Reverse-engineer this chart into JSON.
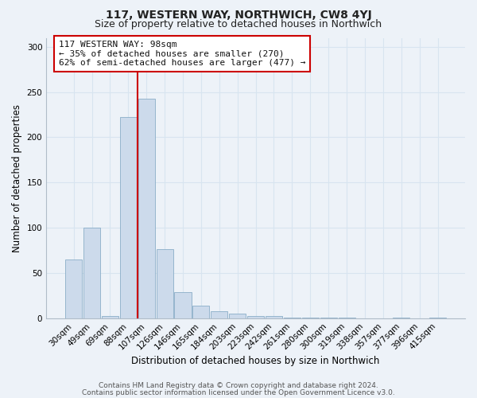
{
  "title": "117, WESTERN WAY, NORTHWICH, CW8 4YJ",
  "subtitle": "Size of property relative to detached houses in Northwich",
  "xlabel": "Distribution of detached houses by size in Northwich",
  "ylabel": "Number of detached properties",
  "bar_labels": [
    "30sqm",
    "49sqm",
    "69sqm",
    "88sqm",
    "107sqm",
    "126sqm",
    "146sqm",
    "165sqm",
    "184sqm",
    "203sqm",
    "223sqm",
    "242sqm",
    "261sqm",
    "280sqm",
    "300sqm",
    "319sqm",
    "338sqm",
    "357sqm",
    "377sqm",
    "396sqm",
    "415sqm"
  ],
  "bar_values": [
    65,
    100,
    2,
    222,
    243,
    76,
    29,
    14,
    8,
    5,
    2,
    2,
    1,
    1,
    1,
    1,
    0,
    0,
    1,
    0,
    1
  ],
  "bar_color": "#ccdaeb",
  "bar_edge_color": "#8aaec8",
  "vline_color": "#cc0000",
  "vline_pos": 3.5,
  "annotation_text": "117 WESTERN WAY: 98sqm\n← 35% of detached houses are smaller (270)\n62% of semi-detached houses are larger (477) →",
  "annotation_box_color": "#ffffff",
  "annotation_box_edge_color": "#cc0000",
  "ylim": [
    0,
    310
  ],
  "yticks": [
    0,
    50,
    100,
    150,
    200,
    250,
    300
  ],
  "footer_line1": "Contains HM Land Registry data © Crown copyright and database right 2024.",
  "footer_line2": "Contains public sector information licensed under the Open Government Licence v3.0.",
  "background_color": "#edf2f8",
  "grid_color": "#d8e4f0",
  "title_fontsize": 10,
  "subtitle_fontsize": 9,
  "axis_label_fontsize": 8.5,
  "tick_fontsize": 7.5,
  "annotation_fontsize": 8,
  "footer_fontsize": 6.5
}
